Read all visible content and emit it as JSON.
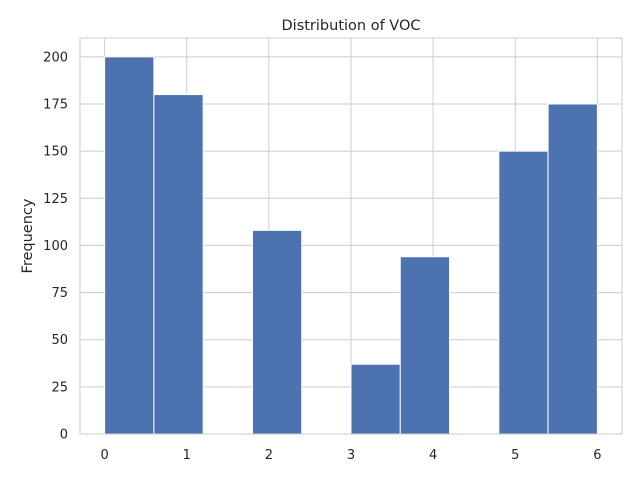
{
  "chart_data": {
    "type": "bar",
    "subtype": "histogram",
    "title": "Distribution of VOC",
    "xlabel": "",
    "ylabel": "Frequency",
    "bins": [
      {
        "start": 0.0,
        "end": 0.6,
        "count": 200
      },
      {
        "start": 0.6,
        "end": 1.2,
        "count": 180
      },
      {
        "start": 1.2,
        "end": 1.8,
        "count": 0
      },
      {
        "start": 1.8,
        "end": 2.4,
        "count": 108
      },
      {
        "start": 2.4,
        "end": 3.0,
        "count": 0
      },
      {
        "start": 3.0,
        "end": 3.6,
        "count": 37
      },
      {
        "start": 3.6,
        "end": 4.2,
        "count": 94
      },
      {
        "start": 4.2,
        "end": 4.8,
        "count": 0
      },
      {
        "start": 4.8,
        "end": 5.4,
        "count": 150
      },
      {
        "start": 5.4,
        "end": 6.0,
        "count": 175
      }
    ],
    "xlim": [
      -0.3,
      6.3
    ],
    "ylim": [
      0,
      210
    ],
    "xticks": [
      "0",
      "1",
      "2",
      "3",
      "4",
      "5",
      "6"
    ],
    "xtick_values": [
      0,
      1,
      2,
      3,
      4,
      5,
      6
    ],
    "yticks": [
      "0",
      "25",
      "50",
      "75",
      "100",
      "125",
      "150",
      "175",
      "200"
    ],
    "ytick_values": [
      0,
      25,
      50,
      75,
      100,
      125,
      150,
      175,
      200
    ],
    "bar_color": "#4c72b0",
    "grid": true,
    "grid_color": "#cccccc",
    "legend": "none"
  }
}
